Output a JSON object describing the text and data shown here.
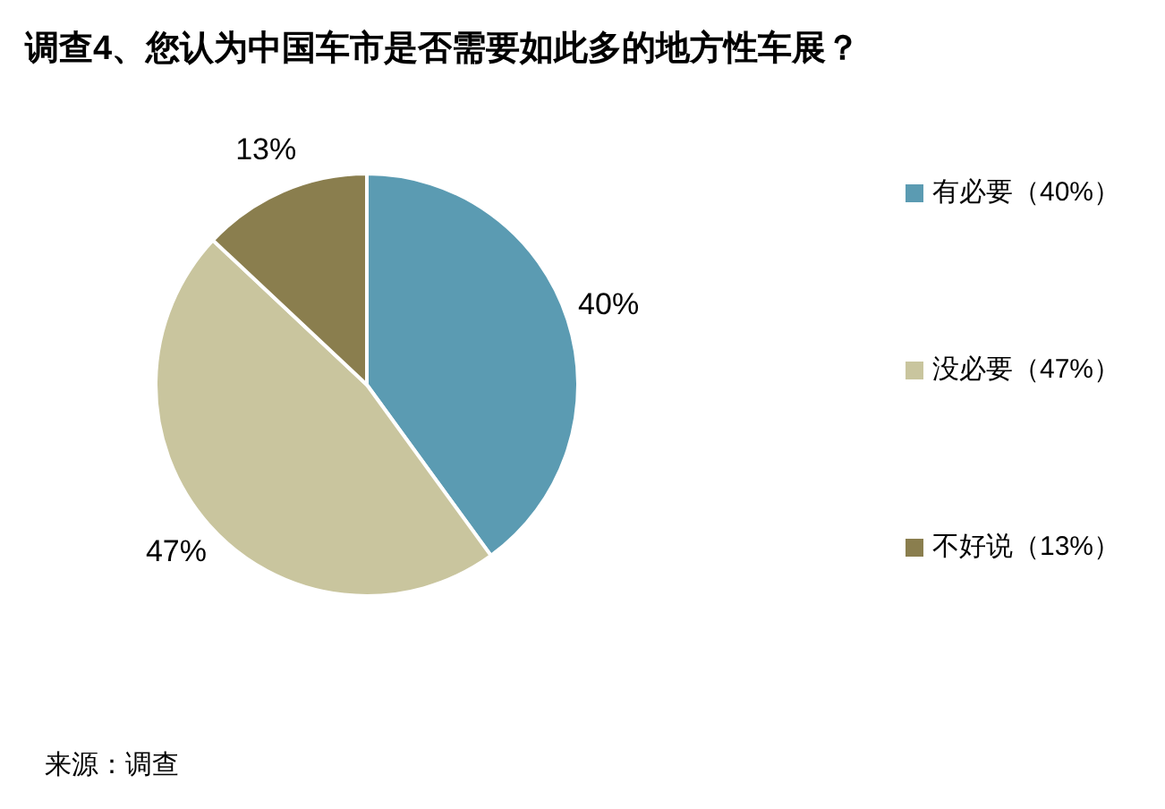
{
  "chart_data": {
    "type": "pie",
    "title": "调查4、您认为中国车市是否需要如此多的地方性车展？",
    "categories": [
      "有必要（40%）",
      "没必要（47%）",
      "不好说（13%）"
    ],
    "values": [
      40,
      47,
      13
    ],
    "value_labels": [
      "40%",
      "47%",
      "13%"
    ],
    "colors": [
      "#5b9bb2",
      "#c9c59e",
      "#8a7e4e"
    ],
    "legend": "right",
    "annotations": [
      "来源：调查"
    ]
  }
}
